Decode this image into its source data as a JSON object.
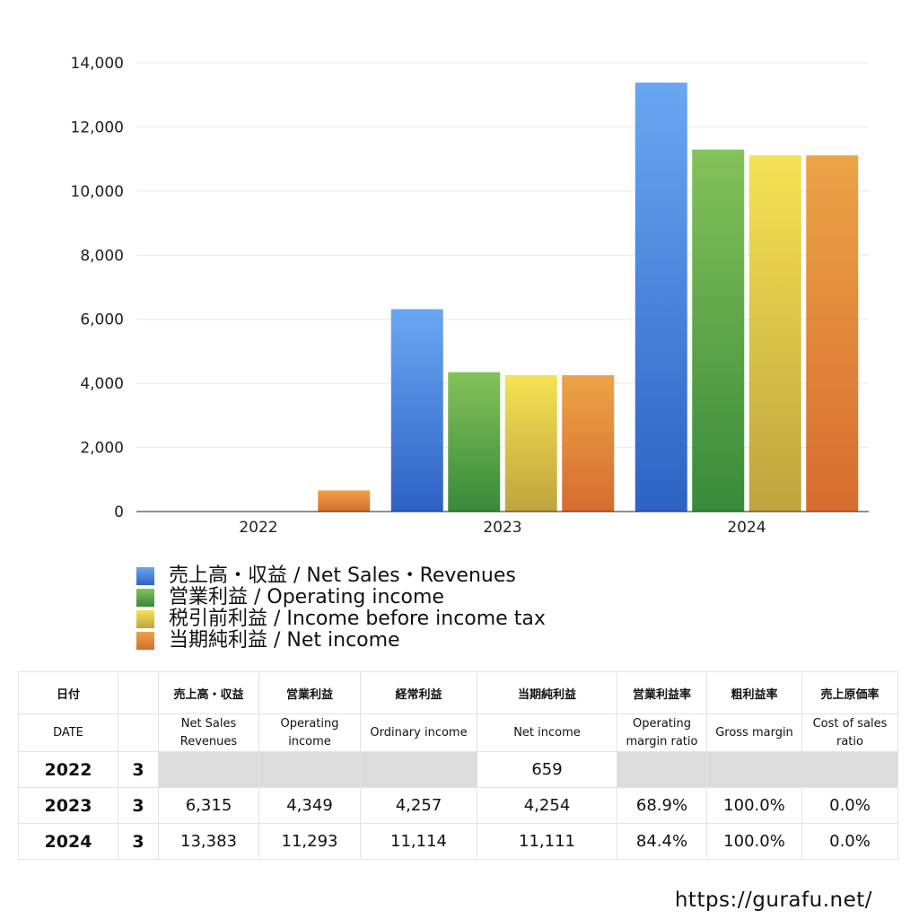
{
  "chart_data": {
    "type": "bar",
    "categories": [
      "2022",
      "2023",
      "2024"
    ],
    "ylim": [
      0,
      14000
    ],
    "yticks": [
      "0",
      "2,000",
      "4,000",
      "6,000",
      "8,000",
      "10,000",
      "12,000",
      "14,000"
    ],
    "grid": true,
    "legend_position": "bottom-left",
    "series": [
      {
        "name": "売上高・収益 / Net Sales・Revenues",
        "values": [
          null,
          6315,
          13383
        ],
        "color_top": "#6aa7f2",
        "color_bottom": "#2d62c4"
      },
      {
        "name": "営業利益 / Operating income",
        "values": [
          null,
          4349,
          11293
        ],
        "color_top": "#84c25a",
        "color_bottom": "#388a3a"
      },
      {
        "name": "税引前利益 / Income before income tax",
        "values": [
          null,
          4257,
          11114
        ],
        "color_top": "#f6e253",
        "color_bottom": "#bea43e"
      },
      {
        "name": "当期純利益 / Net income",
        "values": [
          659,
          4254,
          11111
        ],
        "color_top": "#eca446",
        "color_bottom": "#d66c30"
      }
    ]
  },
  "table": {
    "header_jp": [
      "日付",
      "",
      "売上高・収益",
      "営業利益",
      "経常利益",
      "当期純利益",
      "営業利益率",
      "粗利益率",
      "売上原価率"
    ],
    "header_en": [
      {
        "l1": "DATE",
        "l2": ""
      },
      {
        "l1": "",
        "l2": ""
      },
      {
        "l1": "Net Sales",
        "l2": "Revenues"
      },
      {
        "l1": "Operating",
        "l2": "income"
      },
      {
        "l1": "Ordinary income",
        "l2": ""
      },
      {
        "l1": "Net income",
        "l2": ""
      },
      {
        "l1": "Operating",
        "l2": "margin ratio"
      },
      {
        "l1": "Gross margin",
        "l2": ""
      },
      {
        "l1": "Cost of sales",
        "l2": "ratio"
      }
    ],
    "rows": [
      {
        "year": "2022",
        "month": "3",
        "cells": [
          "",
          "",
          "",
          "659",
          "",
          "",
          ""
        ]
      },
      {
        "year": "2023",
        "month": "3",
        "cells": [
          "6,315",
          "4,349",
          "4,257",
          "4,254",
          "68.9%",
          "100.0%",
          "0.0%"
        ]
      },
      {
        "year": "2024",
        "month": "3",
        "cells": [
          "13,383",
          "11,293",
          "11,114",
          "11,111",
          "84.4%",
          "100.0%",
          "0.0%"
        ]
      }
    ]
  },
  "footer": {
    "url": "https://gurafu.net/"
  }
}
